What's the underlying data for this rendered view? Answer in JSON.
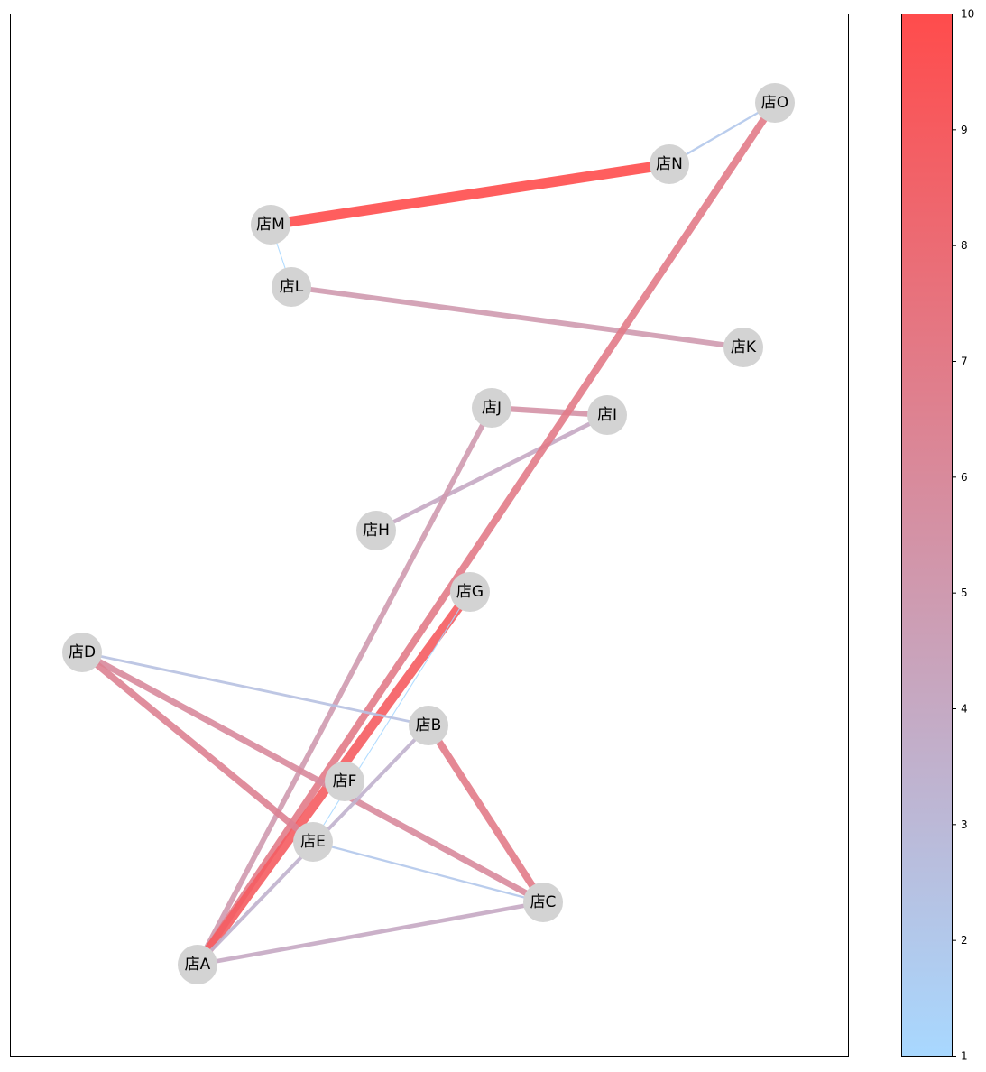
{
  "graph": {
    "nodes": [
      "店A",
      "店B",
      "店C",
      "店D",
      "店E",
      "店F",
      "店G",
      "店H",
      "店I",
      "店J",
      "店K",
      "店L",
      "店M",
      "店N",
      "店O"
    ],
    "edges": [
      {
        "source": "店M",
        "target": "店N",
        "weight": 10
      },
      {
        "source": "店N",
        "target": "店O",
        "weight": 2
      },
      {
        "source": "店M",
        "target": "店L",
        "weight": 1
      },
      {
        "source": "店L",
        "target": "店K",
        "weight": 5
      },
      {
        "source": "店J",
        "target": "店I",
        "weight": 5.5
      },
      {
        "source": "店I",
        "target": "店H",
        "weight": 4
      },
      {
        "source": "店J",
        "target": "店A",
        "weight": 5
      },
      {
        "source": "店O",
        "target": "店A",
        "weight": 7
      },
      {
        "source": "店G",
        "target": "店A",
        "weight": 9
      },
      {
        "source": "店G",
        "target": "店E",
        "weight": 1
      },
      {
        "source": "店D",
        "target": "店B",
        "weight": 2.5
      },
      {
        "source": "店D",
        "target": "店C",
        "weight": 6
      },
      {
        "source": "店D",
        "target": "店E",
        "weight": 6.5
      },
      {
        "source": "店B",
        "target": "店C",
        "weight": 7
      },
      {
        "source": "店B",
        "target": "店A",
        "weight": 3.5
      },
      {
        "source": "店E",
        "target": "店C",
        "weight": 2
      },
      {
        "source": "店A",
        "target": "店C",
        "weight": 4
      }
    ],
    "node_color": "#d3d3d3",
    "colormap": {
      "low": "#a8d8ff",
      "high": "#ff4c4c"
    }
  },
  "colorbar": {
    "range": [
      1,
      10
    ],
    "ticks": [
      "1",
      "2",
      "3",
      "4",
      "5",
      "6",
      "7",
      "8",
      "9",
      "10"
    ]
  }
}
